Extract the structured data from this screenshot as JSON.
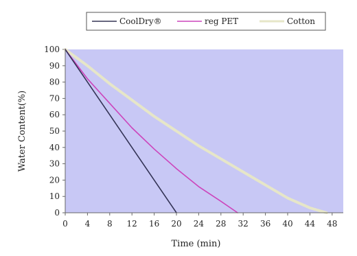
{
  "chart_data": {
    "type": "line",
    "title": "",
    "xlabel": "Time (min)",
    "ylabel": "Water Content(%)",
    "xlim": [
      0,
      50
    ],
    "ylim": [
      0,
      100
    ],
    "xticks": [
      0,
      4,
      8,
      12,
      16,
      20,
      24,
      28,
      32,
      36,
      40,
      44,
      48
    ],
    "yticks": [
      0,
      10,
      20,
      30,
      40,
      50,
      60,
      70,
      80,
      90,
      100
    ],
    "grid": false,
    "legend": "top",
    "plot_background": "#c8c8f5",
    "series": [
      {
        "name": "CoolDry®",
        "color": "#333355",
        "x": [
          0,
          4,
          8,
          12,
          16,
          20
        ],
        "y": [
          100,
          80,
          60,
          40,
          20,
          0
        ]
      },
      {
        "name": "reg PET",
        "color": "#cc44bb",
        "x": [
          0,
          4,
          8,
          12,
          16,
          20,
          24,
          28,
          31
        ],
        "y": [
          100,
          82,
          67,
          52,
          39,
          27,
          16,
          7,
          0
        ]
      },
      {
        "name": "Cotton",
        "color": "#e6e6c8",
        "x": [
          0,
          4,
          8,
          12,
          16,
          20,
          24,
          28,
          32,
          36,
          40,
          44,
          47
        ],
        "y": [
          100,
          90,
          79,
          69,
          59,
          50,
          41,
          33,
          25,
          17,
          9,
          3,
          0
        ]
      }
    ]
  }
}
